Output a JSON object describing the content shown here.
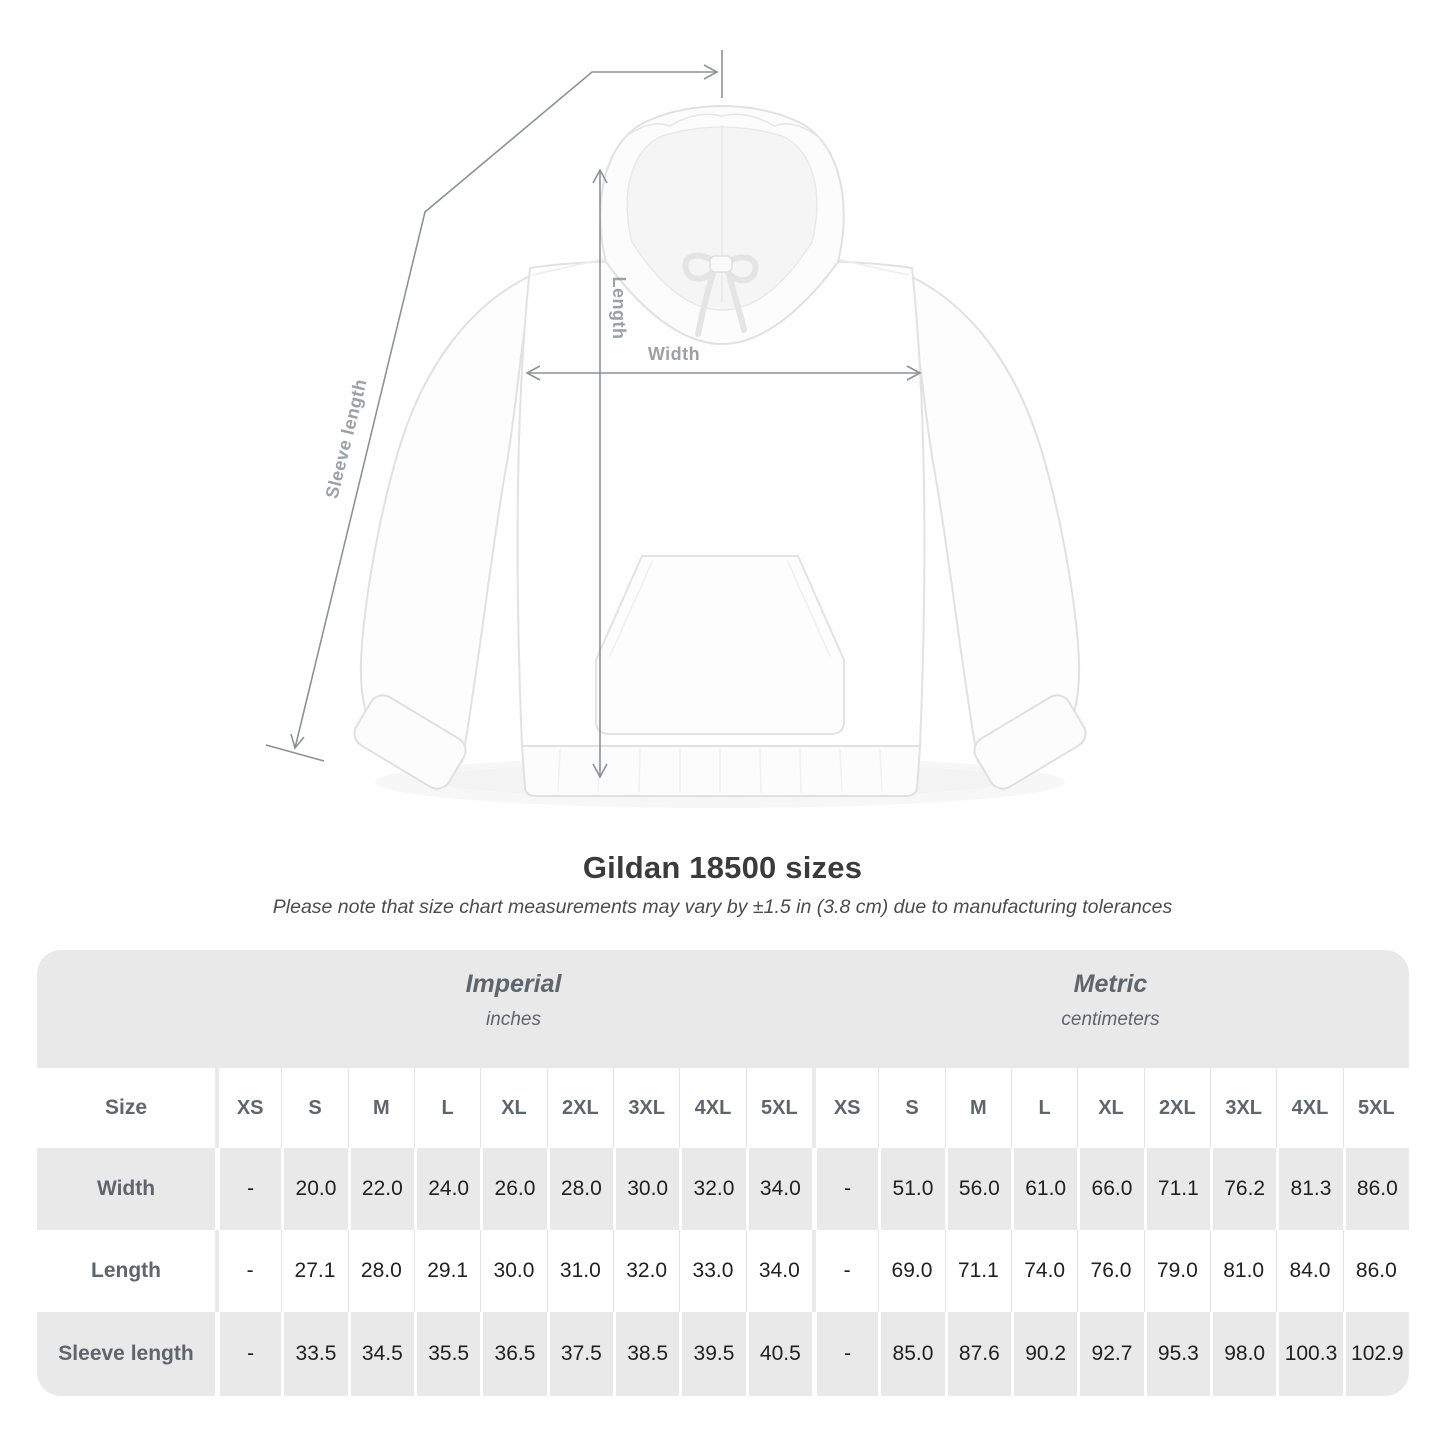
{
  "diagram": {
    "labels": {
      "length": "Length",
      "width": "Width",
      "sleeve": "Sleeve length"
    },
    "subject": "white pullover hoodie flat lay with measurement arrows",
    "arrow_color": "#8d9296",
    "label_color": "#9aa1a7"
  },
  "title": "Gildan 18500 sizes",
  "subtitle": "Please note that size chart measurements may vary by ±1.5 in (3.8 cm) due to manufacturing tolerances",
  "table": {
    "size_header": "Size",
    "unit_groups": [
      {
        "label": "Imperial",
        "sublabel": "inches"
      },
      {
        "label": "Metric",
        "sublabel": "centimeters"
      }
    ],
    "sizes": [
      "XS",
      "S",
      "M",
      "L",
      "XL",
      "2XL",
      "3XL",
      "4XL",
      "5XL"
    ],
    "rows": [
      {
        "label": "Width",
        "imperial": [
          "-",
          "20.0",
          "22.0",
          "24.0",
          "26.0",
          "28.0",
          "30.0",
          "32.0",
          "34.0"
        ],
        "metric": [
          "-",
          "51.0",
          "56.0",
          "61.0",
          "66.0",
          "71.1",
          "76.2",
          "81.3",
          "86.0"
        ]
      },
      {
        "label": "Length",
        "imperial": [
          "-",
          "27.1",
          "28.0",
          "29.1",
          "30.0",
          "31.0",
          "32.0",
          "33.0",
          "34.0"
        ],
        "metric": [
          "-",
          "69.0",
          "71.1",
          "74.0",
          "76.0",
          "79.0",
          "81.0",
          "84.0",
          "86.0"
        ]
      },
      {
        "label": "Sleeve length",
        "imperial": [
          "-",
          "33.5",
          "34.5",
          "35.5",
          "36.5",
          "37.5",
          "38.5",
          "39.5",
          "40.5"
        ],
        "metric": [
          "-",
          "85.0",
          "87.6",
          "90.2",
          "92.7",
          "95.3",
          "98.0",
          "100.3",
          "102.9"
        ]
      }
    ],
    "colors": {
      "band_gray": "#e9e9e9",
      "row_gray": "#e9e9e9",
      "row_white": "#ffffff"
    }
  }
}
